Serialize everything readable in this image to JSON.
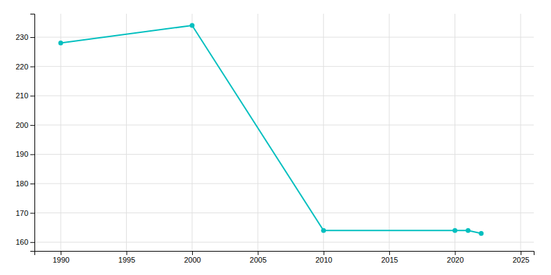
{
  "chart_data": {
    "type": "line",
    "x": [
      1990,
      2000,
      2010,
      2020,
      2021,
      2022
    ],
    "values": [
      228,
      234,
      164,
      164,
      164,
      163
    ],
    "color": "#00BFBF",
    "marker": "circle",
    "xlim": [
      1988,
      2026
    ],
    "ylim": [
      157,
      238
    ],
    "xticks": [
      1990,
      1995,
      2000,
      2005,
      2010,
      2015,
      2020,
      2025
    ],
    "yticks": [
      160,
      170,
      180,
      190,
      200,
      210,
      220,
      230
    ],
    "grid": true
  }
}
